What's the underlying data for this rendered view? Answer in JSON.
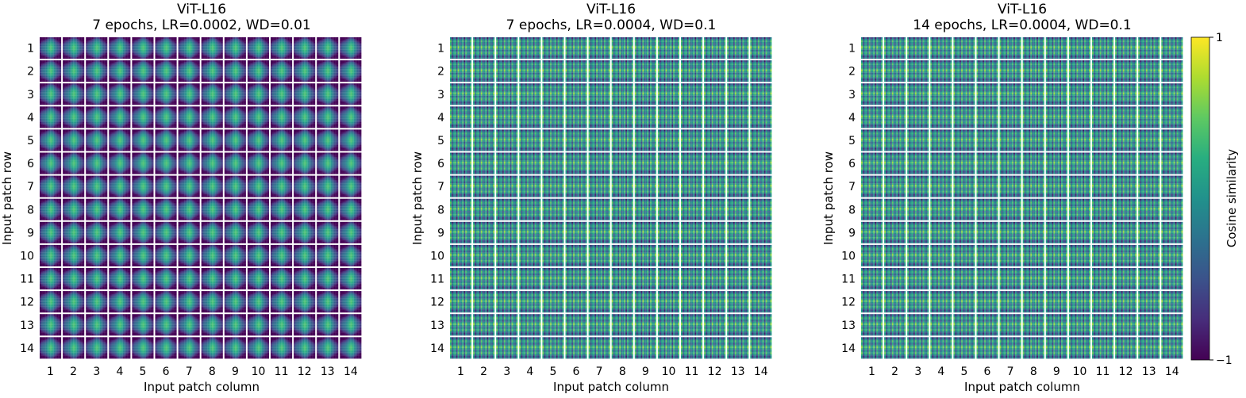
{
  "chart_data": [
    {
      "type": "heatmap",
      "kind": "position-embedding-similarity-grid",
      "title": "ViT-L16",
      "subtitle": "7 epochs, LR=0.0002, WD=0.01",
      "xlabel": "Input patch column",
      "ylabel": "Input patch row",
      "rows": [
        "1",
        "2",
        "3",
        "4",
        "5",
        "6",
        "7",
        "8",
        "9",
        "10",
        "11",
        "12",
        "13",
        "14"
      ],
      "columns": [
        "1",
        "2",
        "3",
        "4",
        "5",
        "6",
        "7",
        "8",
        "9",
        "10",
        "11",
        "12",
        "13",
        "14"
      ],
      "pattern": "smooth",
      "value_range": [
        -1,
        1
      ]
    },
    {
      "type": "heatmap",
      "kind": "position-embedding-similarity-grid",
      "title": "ViT-L16",
      "subtitle": "7 epochs, LR=0.0004, WD=0.1",
      "xlabel": "Input patch column",
      "ylabel": "Input patch row",
      "rows": [
        "1",
        "2",
        "3",
        "4",
        "5",
        "6",
        "7",
        "8",
        "9",
        "10",
        "11",
        "12",
        "13",
        "14"
      ],
      "columns": [
        "1",
        "2",
        "3",
        "4",
        "5",
        "6",
        "7",
        "8",
        "9",
        "10",
        "11",
        "12",
        "13",
        "14"
      ],
      "pattern": "striped",
      "value_range": [
        -1,
        1
      ]
    },
    {
      "type": "heatmap",
      "kind": "position-embedding-similarity-grid",
      "title": "ViT-L16",
      "subtitle": "14 epochs, LR=0.0004, WD=0.1",
      "xlabel": "Input patch column",
      "ylabel": "Input patch row",
      "rows": [
        "1",
        "2",
        "3",
        "4",
        "5",
        "6",
        "7",
        "8",
        "9",
        "10",
        "11",
        "12",
        "13",
        "14"
      ],
      "columns": [
        "1",
        "2",
        "3",
        "4",
        "5",
        "6",
        "7",
        "8",
        "9",
        "10",
        "11",
        "12",
        "13",
        "14"
      ],
      "pattern": "striped",
      "value_range": [
        -1,
        1
      ]
    }
  ],
  "colorbar": {
    "label": "Cosine similarity",
    "max_label": "1",
    "min_label": "−1",
    "colormap": "viridis",
    "range": [
      -1,
      1
    ]
  },
  "colors": {
    "viridis_low": "#440154",
    "viridis_mid": "#21918c",
    "viridis_high": "#fde725",
    "separator": "#ffffff"
  }
}
